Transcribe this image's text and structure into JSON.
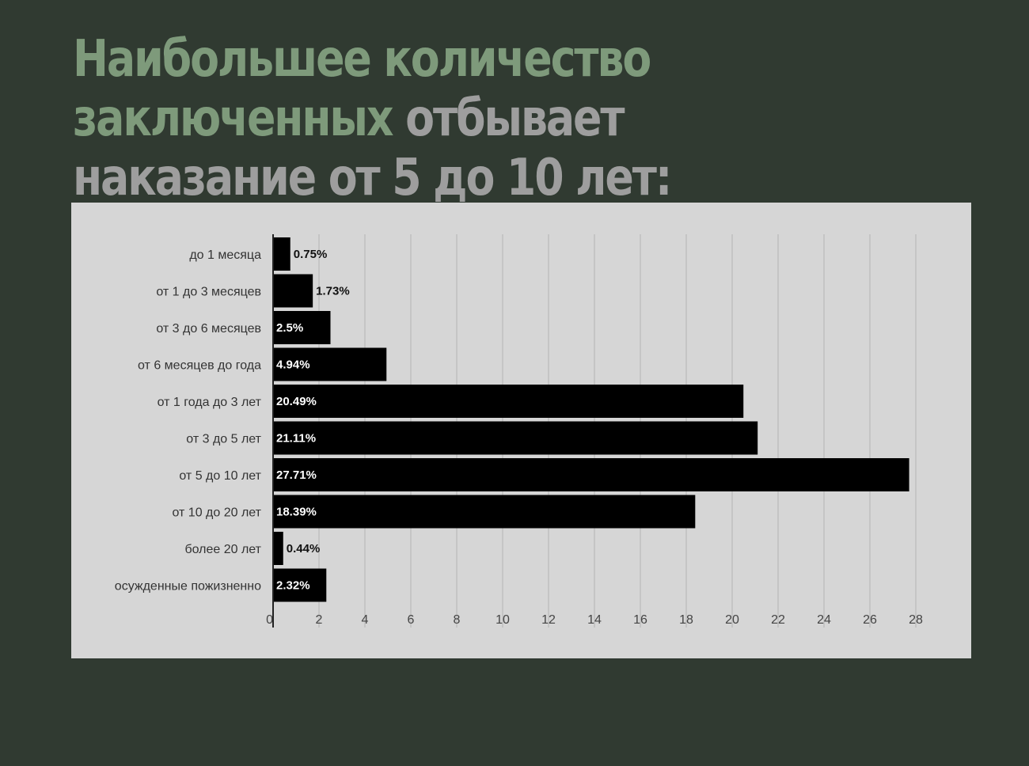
{
  "headline": {
    "line1": "Наибольшее количество",
    "line2_green": "заключенных",
    "line2_gray": " отбывает",
    "line3": "наказание от 5 до 10 лет:"
  },
  "colors": {
    "background": "#303a31",
    "headline_accent": "#7e9a7b",
    "headline_gray": "#9e9e9e",
    "chart_background": "#d6d6d6",
    "bar": "#000000",
    "gridline": "#b4b4b4"
  },
  "chart_data": {
    "type": "bar",
    "orientation": "horizontal",
    "title": "",
    "xlabel": "",
    "ylabel": "",
    "categories": [
      "до 1 месяца",
      "от 1 до 3 месяцев",
      "от 3 до 6 месяцев",
      "от 6 месяцев до года",
      "от 1 года до 3 лет",
      "от 3 до 5 лет",
      "от 5 до 10 лет",
      "от 10 до 20 лет",
      "более 20 лет",
      "осужденные пожизненно"
    ],
    "values": [
      0.75,
      1.73,
      2.5,
      4.94,
      20.49,
      21.11,
      27.71,
      18.39,
      0.44,
      2.32
    ],
    "value_labels": [
      "0.75%",
      "1.73%",
      "2.5%",
      "4.94%",
      "20.49%",
      "21.11%",
      "27.71%",
      "18.39%",
      "0.44%",
      "2.32%"
    ],
    "xlim": [
      0,
      28
    ],
    "xticks": [
      0,
      2,
      4,
      6,
      8,
      10,
      12,
      14,
      16,
      18,
      20,
      22,
      24,
      26,
      28
    ],
    "grid": true,
    "legend": "none"
  }
}
